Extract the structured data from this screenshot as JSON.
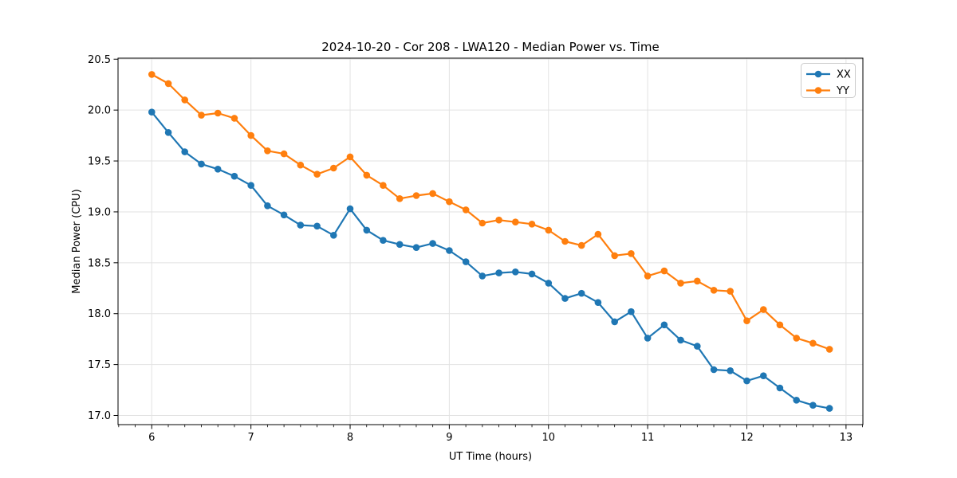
{
  "chart_data": {
    "type": "line",
    "title": "2024-10-20 - Cor 208 - LWA120 - Median Power vs. Time",
    "xlabel": "UT Time (hours)",
    "ylabel": "Median Power (CPU)",
    "xlim": [
      5.66,
      13.17
    ],
    "ylim": [
      16.91,
      20.51
    ],
    "xticks": [
      6,
      7,
      8,
      9,
      10,
      11,
      12,
      13
    ],
    "xtick_labels": [
      "6",
      "7",
      "8",
      "9",
      "10",
      "11",
      "12",
      "13"
    ],
    "x_minor_step_hours": 0.1667,
    "yticks": [
      17.0,
      17.5,
      18.0,
      18.5,
      19.0,
      19.5,
      20.0,
      20.5
    ],
    "ytick_labels": [
      "17.0",
      "17.5",
      "18.0",
      "18.5",
      "19.0",
      "19.5",
      "20.0",
      "20.5"
    ],
    "grid": true,
    "legend_position": "upper right",
    "x": [
      6.0,
      6.167,
      6.333,
      6.5,
      6.667,
      6.833,
      7.0,
      7.167,
      7.333,
      7.5,
      7.667,
      7.833,
      8.0,
      8.167,
      8.333,
      8.5,
      8.667,
      8.833,
      9.0,
      9.167,
      9.333,
      9.5,
      9.667,
      9.833,
      10.0,
      10.167,
      10.333,
      10.5,
      10.667,
      10.833,
      11.0,
      11.167,
      11.333,
      11.5,
      11.667,
      11.833,
      12.0,
      12.167,
      12.333,
      12.5,
      12.667,
      12.833
    ],
    "series": [
      {
        "name": "XX",
        "color": "#1f77b4",
        "marker": "circle",
        "values": [
          19.98,
          19.78,
          19.59,
          19.47,
          19.42,
          19.35,
          19.26,
          19.06,
          18.97,
          18.87,
          18.86,
          18.77,
          19.03,
          18.82,
          18.72,
          18.68,
          18.65,
          18.69,
          18.62,
          18.51,
          18.37,
          18.4,
          18.41,
          18.39,
          18.3,
          18.15,
          18.2,
          18.11,
          17.92,
          18.02,
          17.76,
          17.89,
          17.74,
          17.68,
          17.45,
          17.44,
          17.34,
          17.39,
          17.27,
          17.15,
          17.1,
          17.07
        ]
      },
      {
        "name": "YY",
        "color": "#ff7f0e",
        "marker": "circle",
        "values": [
          20.35,
          20.26,
          20.1,
          19.95,
          19.97,
          19.92,
          19.75,
          19.6,
          19.57,
          19.46,
          19.37,
          19.43,
          19.54,
          19.36,
          19.26,
          19.13,
          19.16,
          19.18,
          19.1,
          19.02,
          18.89,
          18.92,
          18.9,
          18.88,
          18.82,
          18.71,
          18.67,
          18.78,
          18.57,
          18.59,
          18.37,
          18.42,
          18.3,
          18.32,
          18.23,
          18.22,
          17.93,
          18.04,
          17.89,
          17.76,
          17.71,
          17.65
        ]
      }
    ]
  }
}
